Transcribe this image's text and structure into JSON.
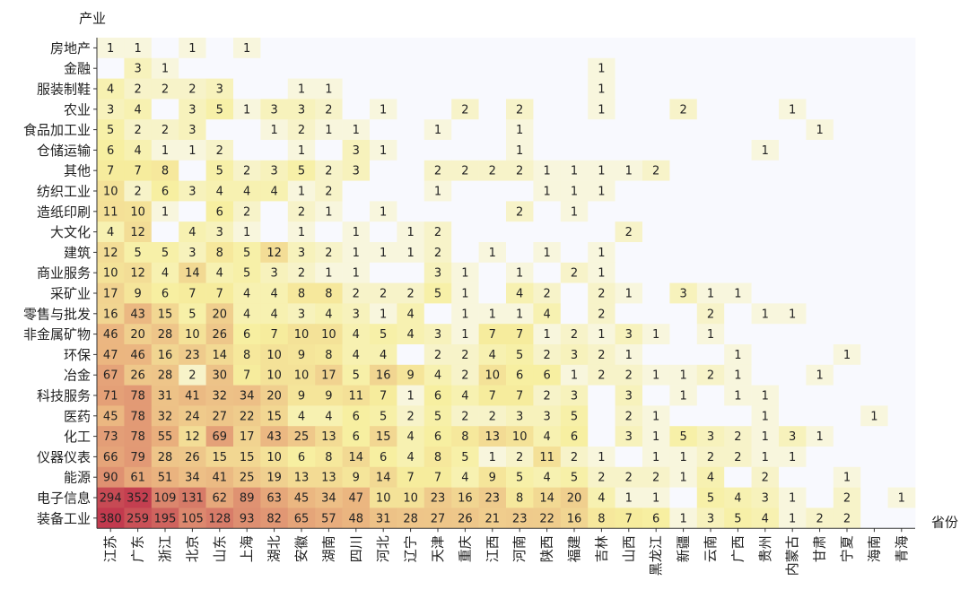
{
  "chart_data": {
    "type": "heatmap",
    "ylabel": "产业",
    "xlabel": "省份",
    "x_categories": [
      "江苏",
      "广东",
      "浙江",
      "北京",
      "山东",
      "上海",
      "湖北",
      "安徽",
      "湖南",
      "四川",
      "河北",
      "辽宁",
      "天津",
      "重庆",
      "江西",
      "河南",
      "陕西",
      "福建",
      "吉林",
      "山西",
      "黑龙江",
      "新疆",
      "云南",
      "广西",
      "贵州",
      "内蒙古",
      "甘肃",
      "宁夏",
      "海南",
      "青海"
    ],
    "y_categories": [
      "房地产",
      "金融",
      "服装制鞋",
      "农业",
      "食品加工业",
      "仓储运输",
      "其他",
      "纺织工业",
      "造纸印刷",
      "大文化",
      "建筑",
      "商业服务",
      "采矿业",
      "零售与批发",
      "非金属矿物",
      "环保",
      "冶金",
      "科技服务",
      "医药",
      "化工",
      "仪器仪表",
      "能源",
      "电子信息",
      "装备工业"
    ],
    "values": [
      [
        1,
        1,
        null,
        1,
        null,
        1,
        null,
        null,
        null,
        null,
        null,
        null,
        null,
        null,
        null,
        null,
        null,
        null,
        null,
        null,
        null,
        null,
        null,
        null,
        null,
        null,
        null,
        null,
        null,
        null
      ],
      [
        null,
        3,
        1,
        null,
        null,
        null,
        null,
        null,
        null,
        null,
        null,
        null,
        null,
        null,
        null,
        null,
        null,
        null,
        1,
        null,
        null,
        null,
        null,
        null,
        null,
        null,
        null,
        null,
        null,
        null
      ],
      [
        4,
        2,
        2,
        2,
        3,
        null,
        null,
        1,
        1,
        null,
        null,
        null,
        null,
        null,
        null,
        null,
        null,
        null,
        1,
        null,
        null,
        null,
        null,
        null,
        null,
        null,
        null,
        null,
        null,
        null
      ],
      [
        3,
        4,
        null,
        3,
        5,
        1,
        3,
        3,
        2,
        null,
        1,
        null,
        null,
        2,
        null,
        2,
        null,
        null,
        1,
        null,
        null,
        2,
        null,
        null,
        null,
        1,
        null,
        null,
        null,
        null
      ],
      [
        5,
        2,
        2,
        3,
        null,
        null,
        1,
        2,
        1,
        1,
        null,
        null,
        1,
        null,
        null,
        1,
        null,
        null,
        null,
        null,
        null,
        null,
        null,
        null,
        null,
        null,
        1,
        null,
        null,
        null
      ],
      [
        6,
        4,
        1,
        1,
        2,
        null,
        null,
        1,
        null,
        3,
        1,
        null,
        null,
        null,
        null,
        1,
        null,
        null,
        null,
        null,
        null,
        null,
        null,
        null,
        1,
        null,
        null,
        null,
        null,
        null
      ],
      [
        7,
        7,
        8,
        null,
        5,
        2,
        3,
        5,
        2,
        3,
        null,
        null,
        2,
        2,
        2,
        2,
        1,
        1,
        1,
        1,
        2,
        null,
        null,
        null,
        null,
        null,
        null,
        null,
        null,
        null
      ],
      [
        10,
        2,
        6,
        3,
        4,
        4,
        4,
        1,
        2,
        null,
        null,
        null,
        1,
        null,
        null,
        null,
        1,
        1,
        1,
        null,
        null,
        null,
        null,
        null,
        null,
        null,
        null,
        null,
        null,
        null
      ],
      [
        11,
        10,
        1,
        null,
        6,
        2,
        null,
        2,
        1,
        null,
        1,
        null,
        null,
        null,
        null,
        2,
        null,
        1,
        null,
        null,
        null,
        null,
        null,
        null,
        null,
        null,
        null,
        null,
        null,
        null
      ],
      [
        4,
        12,
        null,
        4,
        3,
        1,
        null,
        1,
        null,
        1,
        null,
        1,
        2,
        null,
        null,
        null,
        null,
        null,
        null,
        2,
        null,
        null,
        null,
        null,
        null,
        null,
        null,
        null,
        null,
        null
      ],
      [
        12,
        5,
        5,
        3,
        8,
        5,
        12,
        3,
        2,
        1,
        1,
        1,
        2,
        null,
        1,
        null,
        1,
        null,
        1,
        null,
        null,
        null,
        null,
        null,
        null,
        null,
        null,
        null,
        null,
        null
      ],
      [
        10,
        12,
        4,
        14,
        4,
        5,
        3,
        2,
        1,
        1,
        null,
        null,
        3,
        1,
        null,
        1,
        null,
        2,
        1,
        null,
        null,
        null,
        null,
        null,
        null,
        null,
        null,
        null,
        null,
        null
      ],
      [
        17,
        9,
        6,
        7,
        7,
        4,
        4,
        8,
        8,
        2,
        2,
        2,
        5,
        1,
        null,
        4,
        2,
        null,
        2,
        1,
        null,
        3,
        1,
        1,
        null,
        null,
        null,
        null,
        null,
        null
      ],
      [
        16,
        43,
        15,
        5,
        20,
        4,
        4,
        3,
        4,
        3,
        1,
        4,
        null,
        1,
        1,
        1,
        4,
        null,
        2,
        null,
        null,
        null,
        2,
        null,
        1,
        1,
        null,
        null,
        null,
        null
      ],
      [
        46,
        20,
        28,
        10,
        26,
        6,
        7,
        10,
        10,
        4,
        5,
        4,
        3,
        1,
        7,
        7,
        1,
        2,
        1,
        3,
        1,
        null,
        1,
        null,
        null,
        null,
        null,
        null,
        null,
        null
      ],
      [
        47,
        46,
        16,
        23,
        14,
        8,
        10,
        9,
        8,
        4,
        4,
        null,
        2,
        2,
        4,
        5,
        2,
        3,
        2,
        1,
        null,
        null,
        null,
        1,
        null,
        null,
        null,
        1,
        null,
        null
      ],
      [
        67,
        26,
        28,
        2,
        30,
        7,
        10,
        10,
        17,
        5,
        16,
        9,
        4,
        2,
        10,
        6,
        6,
        1,
        2,
        2,
        1,
        1,
        2,
        1,
        null,
        null,
        1,
        null,
        null,
        null
      ],
      [
        71,
        78,
        31,
        41,
        32,
        34,
        20,
        9,
        9,
        11,
        7,
        1,
        6,
        4,
        7,
        7,
        2,
        3,
        null,
        3,
        null,
        1,
        null,
        1,
        1,
        null,
        null,
        null,
        null,
        null
      ],
      [
        45,
        78,
        32,
        24,
        27,
        22,
        15,
        4,
        4,
        6,
        5,
        2,
        5,
        2,
        2,
        3,
        3,
        5,
        null,
        2,
        1,
        null,
        null,
        null,
        1,
        null,
        null,
        null,
        1,
        null
      ],
      [
        73,
        78,
        55,
        12,
        69,
        17,
        43,
        25,
        13,
        6,
        15,
        4,
        6,
        8,
        13,
        10,
        4,
        6,
        null,
        3,
        1,
        5,
        3,
        2,
        1,
        3,
        1,
        null,
        null,
        null
      ],
      [
        66,
        79,
        28,
        26,
        15,
        15,
        10,
        6,
        8,
        14,
        6,
        4,
        8,
        5,
        1,
        2,
        11,
        2,
        1,
        null,
        1,
        1,
        2,
        2,
        1,
        1,
        null,
        null,
        null,
        null
      ],
      [
        90,
        61,
        51,
        34,
        41,
        25,
        19,
        13,
        13,
        9,
        14,
        7,
        7,
        4,
        9,
        5,
        4,
        5,
        2,
        2,
        2,
        1,
        4,
        null,
        2,
        null,
        null,
        1,
        null,
        null
      ],
      [
        294,
        352,
        109,
        131,
        62,
        89,
        63,
        45,
        34,
        47,
        10,
        10,
        23,
        16,
        23,
        8,
        14,
        20,
        4,
        1,
        1,
        null,
        5,
        4,
        3,
        1,
        null,
        2,
        null,
        1
      ],
      [
        380,
        259,
        195,
        105,
        128,
        93,
        82,
        65,
        57,
        48,
        31,
        28,
        27,
        26,
        21,
        23,
        22,
        16,
        8,
        7,
        6,
        1,
        3,
        5,
        4,
        1,
        2,
        2,
        null,
        null
      ]
    ],
    "colormap": [
      "#f8f9fe",
      "#f7ef9f",
      "#eab37f",
      "#c23a4e"
    ],
    "grid": false,
    "legend": "none"
  }
}
